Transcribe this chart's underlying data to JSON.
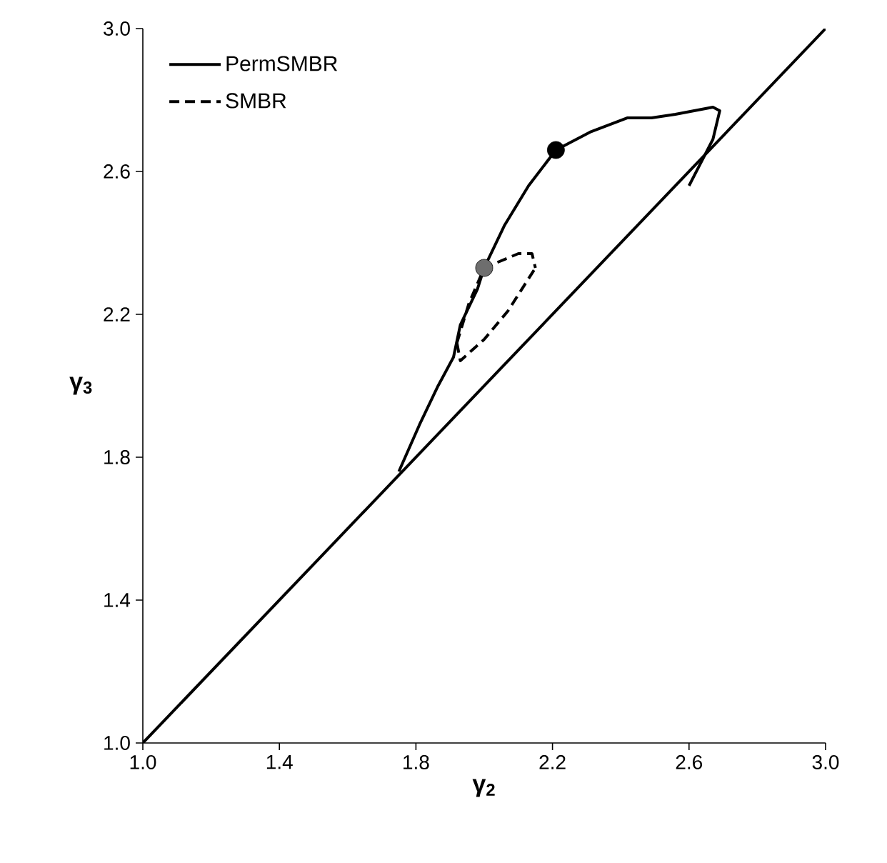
{
  "chart_data": {
    "type": "line",
    "xlabel": "γ$_{2}$",
    "ylabel": "γ$_{3}$",
    "xlim": [
      1.0,
      3.0
    ],
    "ylim": [
      1.0,
      3.0
    ],
    "xticks": [
      {
        "value": 1.0,
        "label": "1.0"
      },
      {
        "value": 1.4,
        "label": "1.4"
      },
      {
        "value": 1.8,
        "label": "1.8"
      },
      {
        "value": 2.2,
        "label": "2.2"
      },
      {
        "value": 2.6,
        "label": "2.6"
      },
      {
        "value": 3.0,
        "label": "3.0"
      }
    ],
    "yticks": [
      {
        "value": 1.0,
        "label": "1.0"
      },
      {
        "value": 1.4,
        "label": "1.4"
      },
      {
        "value": 1.8,
        "label": "1.8"
      },
      {
        "value": 2.2,
        "label": "2.2"
      },
      {
        "value": 2.6,
        "label": "2.6"
      },
      {
        "value": 3.0,
        "label": "3.0"
      }
    ],
    "legend": "top left",
    "grid": false,
    "series": [
      {
        "color": "#000000",
        "line_style": "solid",
        "x": [
          1.0,
          3.0
        ],
        "values": [
          1.0,
          3.0
        ]
      },
      {
        "name": "PermSMBR",
        "color": "#000000",
        "line_style": "solid",
        "x": [
          1.75,
          1.81,
          1.865,
          1.91,
          1.93,
          1.98,
          2.0,
          2.06,
          2.13,
          2.21,
          2.31,
          2.42,
          2.49,
          2.56,
          2.67,
          2.69,
          2.67,
          2.6
        ],
        "values": [
          1.76,
          1.89,
          2.0,
          2.08,
          2.17,
          2.27,
          2.33,
          2.45,
          2.56,
          2.66,
          2.71,
          2.75,
          2.75,
          2.76,
          2.78,
          2.77,
          2.69,
          2.56
        ]
      },
      {
        "name": "SMBR",
        "color": "#000000",
        "line_style": "dashed",
        "x": [
          1.92,
          1.955,
          2.0,
          2.05,
          2.1,
          2.14,
          2.15
        ],
        "values": [
          2.12,
          2.23,
          2.33,
          2.35,
          2.37,
          2.37,
          2.33
        ]
      },
      {
        "color": "#000000",
        "line_style": "dashed",
        "x": [
          1.92,
          1.93,
          2.0,
          2.07,
          2.15
        ],
        "values": [
          2.12,
          2.07,
          2.13,
          2.21,
          2.33
        ]
      },
      {
        "type": "scatter",
        "marker": "circle",
        "color": "#000000",
        "x": [
          2.21
        ],
        "values": [
          2.66
        ]
      },
      {
        "type": "scatter",
        "marker": "circle",
        "color": "#6e6e6e",
        "x": [
          2.0
        ],
        "values": [
          2.33
        ]
      }
    ]
  }
}
